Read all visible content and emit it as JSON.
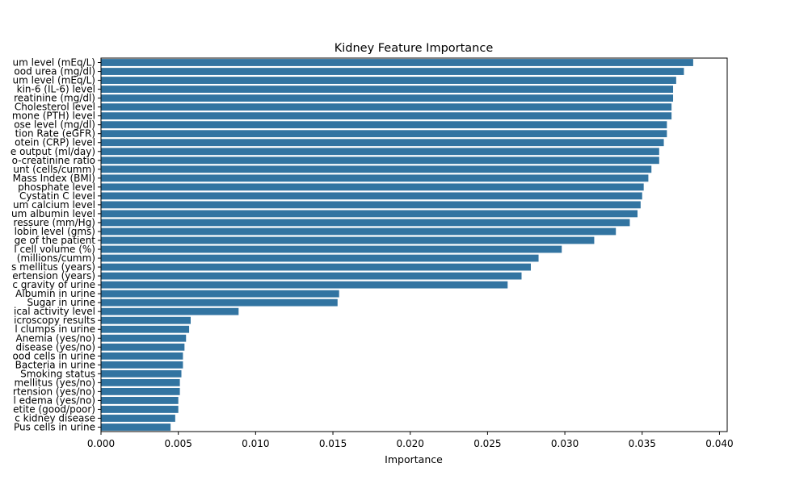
{
  "chart_data": {
    "type": "bar",
    "orientation": "horizontal",
    "title": "Kidney Feature Importance",
    "xlabel": "Importance",
    "ylabel": "",
    "xlim": [
      0,
      0.0405
    ],
    "xticks": [
      "0.000",
      "0.005",
      "0.010",
      "0.015",
      "0.020",
      "0.025",
      "0.030",
      "0.035",
      "0.040"
    ],
    "bar_color": "#3274a1",
    "grid": false,
    "categories": [
      "um level (mEq/L)",
      "ood urea (mg/dl)",
      "um level (mEq/L)",
      "kin-6 (IL-6) level",
      "reatinine (mg/dl)",
      "Cholesterol level",
      "mone (PTH) level",
      "ose level (mg/dl)",
      "tion Rate (eGFR)",
      "otein (CRP) level",
      "e output (ml/day)",
      "o-creatinine ratio",
      "unt (cells/cumm)",
      "Mass Index (BMI)",
      "phosphate level",
      "Cystatin C level",
      "um calcium level",
      "um albumin level",
      "ressure (mm/Hg)",
      "lobin level (gms)",
      "ge of the patient",
      "l cell volume (%)",
      "(millions/cumm)",
      "s mellitus (years)",
      "ertension (years)",
      "c gravity of urine",
      "Albumin in urine",
      "Sugar in urine",
      "ical activity level",
      "icroscopy results",
      "l clumps in urine",
      "Anemia (yes/no)",
      "disease (yes/no)",
      "ood cells in urine",
      "Bacteria in urine",
      "Smoking status",
      "mellitus (yes/no)",
      "rtension (yes/no)",
      "l edema (yes/no)",
      "etite (good/poor)",
      "c kidney disease",
      "Pus cells in urine"
    ],
    "values": [
      0.0383,
      0.0377,
      0.0372,
      0.037,
      0.037,
      0.0369,
      0.0369,
      0.0366,
      0.0366,
      0.0364,
      0.0361,
      0.0361,
      0.0356,
      0.0354,
      0.0351,
      0.035,
      0.0349,
      0.0347,
      0.0342,
      0.0333,
      0.0319,
      0.0298,
      0.0283,
      0.0278,
      0.0272,
      0.0263,
      0.0154,
      0.0153,
      0.0089,
      0.0058,
      0.0057,
      0.0055,
      0.0054,
      0.0053,
      0.0053,
      0.0052,
      0.0051,
      0.0051,
      0.005,
      0.005,
      0.0048,
      0.0045
    ]
  }
}
